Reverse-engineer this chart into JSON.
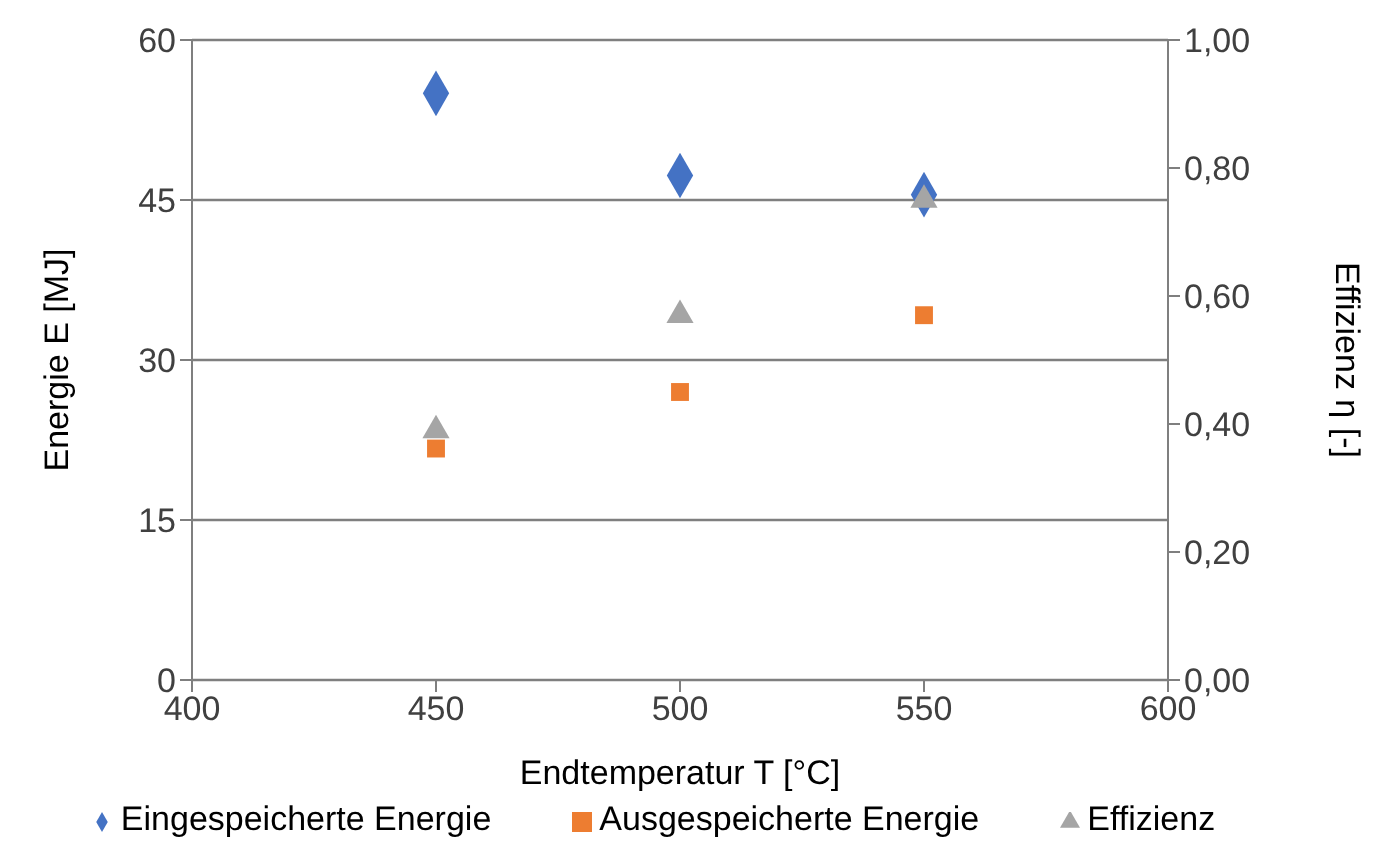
{
  "chart_data": {
    "type": "scatter",
    "xlabel": "Endtemperatur T [°C]",
    "ylabel": "Energie E [MJ]",
    "y2label": "Effizienz η [-]",
    "xlim": [
      400,
      600
    ],
    "xticks": [
      400,
      450,
      500,
      550,
      600
    ],
    "ylim": [
      0,
      60
    ],
    "yticks": [
      0,
      15,
      30,
      45,
      60
    ],
    "y2lim": [
      0,
      1
    ],
    "y2ticks": [
      {
        "value": 0,
        "label": "0,00"
      },
      {
        "value": 0.2,
        "label": "0,20"
      },
      {
        "value": 0.4,
        "label": "0,40"
      },
      {
        "value": 0.6,
        "label": "0,60"
      },
      {
        "value": 0.8,
        "label": "0,80"
      },
      {
        "value": 1,
        "label": "1,00"
      }
    ],
    "grid": "y",
    "legend": "bottom",
    "x": [
      450,
      500,
      550
    ],
    "series": [
      {
        "name": "Eingespeicherte Energie",
        "color": "#4472c4",
        "marker": "diamond",
        "values": [
          55,
          47.3,
          45.5
        ]
      },
      {
        "name": "Ausgespeicherte Energie",
        "color": "#ed7d31",
        "marker": "square",
        "values": [
          21.7,
          27,
          34.2
        ]
      },
      {
        "name": "Effizienz",
        "color": "#a5a5a5",
        "marker": "triangle",
        "axis": "y2",
        "values": [
          0.39,
          0.57,
          0.75
        ]
      }
    ]
  }
}
